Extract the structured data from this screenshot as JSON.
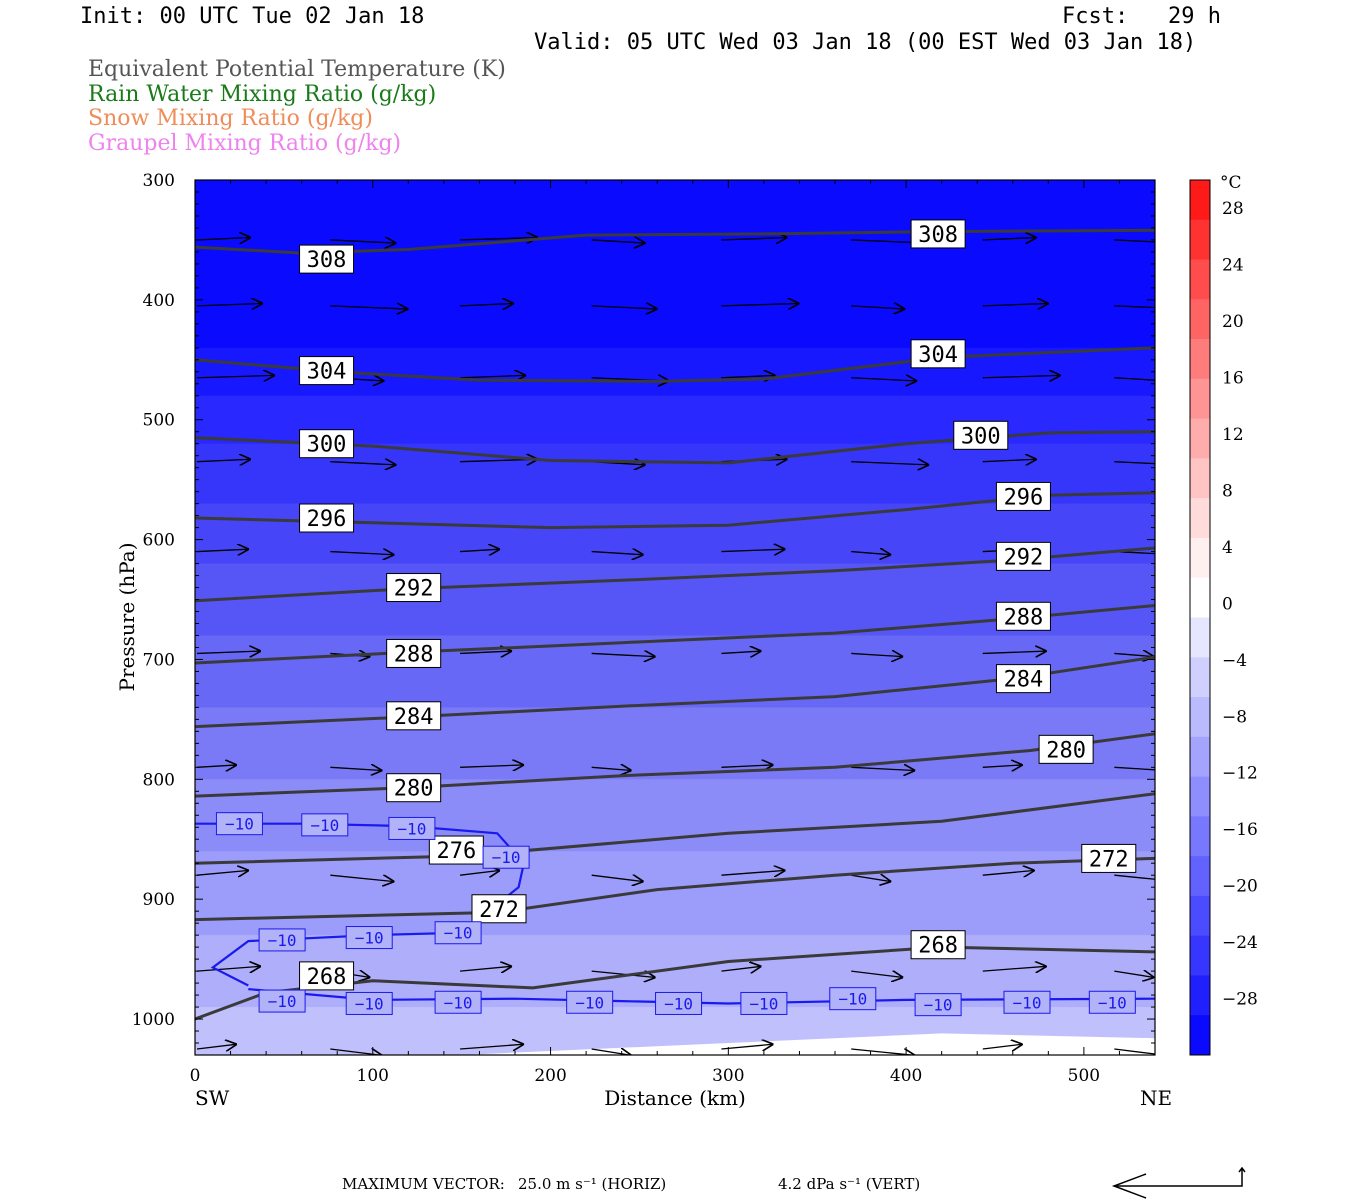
{
  "header": {
    "init": "Init: 00 UTC Tue 02 Jan 18",
    "fcst": "Fcst:   29 h",
    "valid": "Valid: 05 UTC Wed 03 Jan 18 (00 EST Wed 03 Jan 18)"
  },
  "legend": [
    {
      "label": "Equivalent Potential Temperature (K)",
      "color": "#555555"
    },
    {
      "label": "Rain Water Mixing Ratio (g/kg)",
      "color": "#1a7a1a"
    },
    {
      "label": "Snow Mixing Ratio (g/kg)",
      "color": "#f08c5a"
    },
    {
      "label": "Graupel Mixing Ratio (g/kg)",
      "color": "#ee82ee"
    }
  ],
  "footer": {
    "vector_label": "MAXIMUM VECTOR:",
    "horiz": "25.0 m s⁻¹ (HORIZ)",
    "vert": "4.2 dPa s⁻¹ (VERT)"
  },
  "chart_data": {
    "type": "heatmap",
    "xlabel": "Distance (km)",
    "ylabel": "Pressure (hPa)",
    "xlim": [
      0,
      540
    ],
    "ylim": [
      1030,
      300
    ],
    "x_ticks": [
      "0",
      "100",
      "200",
      "300",
      "400",
      "500"
    ],
    "x_tick_values": [
      0,
      100,
      200,
      300,
      400,
      500
    ],
    "y_ticks": [
      "300",
      "400",
      "500",
      "600",
      "700",
      "800",
      "900",
      "1000"
    ],
    "y_tick_values": [
      300,
      400,
      500,
      600,
      700,
      800,
      900,
      1000
    ],
    "x_end_labels": {
      "left": "SW",
      "right": "NE"
    },
    "colorbar": {
      "unit": "°C",
      "labels": [
        "28",
        "24",
        "20",
        "16",
        "12",
        "8",
        "4",
        "0",
        "−4",
        "−8",
        "−12",
        "−16",
        "−20",
        "−24",
        "−28"
      ],
      "values": [
        28,
        24,
        20,
        16,
        12,
        8,
        4,
        0,
        -4,
        -8,
        -12,
        -16,
        -20,
        -24,
        -28
      ],
      "colors": [
        "#ff1a1a",
        "#ff3232",
        "#ff4c4c",
        "#ff6464",
        "#ff7c7c",
        "#ff9494",
        "#ffacac",
        "#ffc4c4",
        "#ffdcdc",
        "#fff0f0",
        "#ffffff",
        "#e6e6ff",
        "#d0d0ff",
        "#babaff",
        "#a4a4ff",
        "#8e8eff",
        "#7878ff",
        "#6262ff",
        "#4c4cff",
        "#3636ff",
        "#2020ff",
        "#0a0aff"
      ]
    },
    "temperature_bands": [
      {
        "top": 300,
        "color": "#0a0aff"
      },
      {
        "top": 440,
        "color": "#1818ff"
      },
      {
        "top": 480,
        "color": "#2828ff"
      },
      {
        "top": 520,
        "color": "#3636fa"
      },
      {
        "top": 570,
        "color": "#4646f8"
      },
      {
        "top": 620,
        "color": "#5656f6"
      },
      {
        "top": 680,
        "color": "#6868f6"
      },
      {
        "top": 740,
        "color": "#7a7af6"
      },
      {
        "top": 800,
        "color": "#8c8cf8"
      },
      {
        "top": 860,
        "color": "#9c9cfa"
      },
      {
        "top": 930,
        "color": "#aeaefb"
      },
      {
        "top": 990,
        "color": "#c0c0fd"
      }
    ],
    "theta_e_contours": [
      {
        "value": "308",
        "points": [
          [
            0,
            356
          ],
          [
            60,
            361
          ],
          [
            120,
            358
          ],
          [
            220,
            346
          ],
          [
            320,
            345
          ],
          [
            420,
            343
          ],
          [
            540,
            342
          ]
        ],
        "labels": [
          [
            74,
            366
          ],
          [
            418,
            345
          ]
        ]
      },
      {
        "value": "304",
        "points": [
          [
            0,
            450
          ],
          [
            80,
            460
          ],
          [
            160,
            467
          ],
          [
            260,
            468
          ],
          [
            320,
            466
          ],
          [
            420,
            448
          ],
          [
            540,
            440
          ]
        ],
        "labels": [
          [
            74,
            459
          ],
          [
            418,
            445
          ]
        ]
      },
      {
        "value": "300",
        "points": [
          [
            0,
            515
          ],
          [
            100,
            522
          ],
          [
            200,
            534
          ],
          [
            300,
            536
          ],
          [
            400,
            520
          ],
          [
            480,
            511
          ],
          [
            540,
            510
          ]
        ],
        "labels": [
          [
            74,
            520
          ],
          [
            442,
            513
          ]
        ]
      },
      {
        "value": "296",
        "points": [
          [
            0,
            582
          ],
          [
            100,
            586
          ],
          [
            200,
            590
          ],
          [
            300,
            588
          ],
          [
            400,
            575
          ],
          [
            480,
            563
          ],
          [
            540,
            561
          ]
        ],
        "labels": [
          [
            74,
            582
          ],
          [
            466,
            564
          ]
        ]
      },
      {
        "value": "292",
        "points": [
          [
            0,
            651
          ],
          [
            120,
            641
          ],
          [
            240,
            634
          ],
          [
            360,
            626
          ],
          [
            460,
            617
          ],
          [
            540,
            607
          ]
        ],
        "labels": [
          [
            123,
            640
          ],
          [
            466,
            614
          ]
        ]
      },
      {
        "value": "288",
        "points": [
          [
            0,
            703
          ],
          [
            120,
            694
          ],
          [
            240,
            686
          ],
          [
            360,
            678
          ],
          [
            460,
            666
          ],
          [
            540,
            655
          ]
        ],
        "labels": [
          [
            123,
            695
          ],
          [
            466,
            664
          ]
        ]
      },
      {
        "value": "284",
        "points": [
          [
            0,
            756
          ],
          [
            120,
            748
          ],
          [
            240,
            739
          ],
          [
            360,
            731
          ],
          [
            460,
            716
          ],
          [
            540,
            698
          ]
        ],
        "labels": [
          [
            123,
            747
          ],
          [
            466,
            716
          ]
        ]
      },
      {
        "value": "280",
        "points": [
          [
            0,
            814
          ],
          [
            120,
            807
          ],
          [
            240,
            797
          ],
          [
            360,
            790
          ],
          [
            470,
            776
          ],
          [
            540,
            762
          ]
        ],
        "labels": [
          [
            123,
            807
          ],
          [
            490,
            775
          ]
        ]
      },
      {
        "value": "276",
        "points": [
          [
            0,
            870
          ],
          [
            150,
            864
          ],
          [
            300,
            845
          ],
          [
            420,
            835
          ],
          [
            540,
            812
          ]
        ],
        "labels": [
          [
            147,
            859
          ]
        ]
      },
      {
        "value": "272",
        "points": [
          [
            0,
            917
          ],
          [
            170,
            911
          ],
          [
            260,
            892
          ],
          [
            360,
            880
          ],
          [
            460,
            870
          ],
          [
            540,
            866
          ]
        ],
        "labels": [
          [
            171,
            908
          ],
          [
            514,
            866
          ]
        ]
      },
      {
        "value": "268",
        "points": [
          [
            0,
            1000
          ],
          [
            40,
            978
          ],
          [
            100,
            968
          ],
          [
            190,
            974
          ],
          [
            300,
            952
          ],
          [
            420,
            940
          ],
          [
            540,
            944
          ]
        ],
        "labels": [
          [
            74,
            964
          ],
          [
            418,
            938
          ]
        ]
      }
    ],
    "isotherm_minus10": {
      "value": "−10",
      "upper": [
        [
          0,
          837
        ],
        [
          60,
          837
        ],
        [
          120,
          839
        ],
        [
          170,
          845
        ],
        [
          185,
          870
        ],
        [
          182,
          890
        ],
        [
          150,
          928
        ],
        [
          100,
          930
        ],
        [
          30,
          935
        ],
        [
          10,
          957
        ],
        [
          30,
          972
        ]
      ],
      "lower": [
        [
          30,
          975
        ],
        [
          100,
          984
        ],
        [
          180,
          983
        ],
        [
          240,
          985
        ],
        [
          300,
          987
        ],
        [
          400,
          984
        ],
        [
          540,
          983
        ]
      ],
      "labels": [
        [
          25,
          837
        ],
        [
          73,
          838
        ],
        [
          122,
          841
        ],
        [
          175,
          865
        ],
        [
          49,
          934
        ],
        [
          98,
          932
        ],
        [
          148,
          928
        ],
        [
          49,
          985
        ],
        [
          98,
          987
        ],
        [
          148,
          986
        ],
        [
          222,
          986
        ],
        [
          272,
          987
        ],
        [
          320,
          987
        ],
        [
          370,
          983
        ],
        [
          418,
          988
        ],
        [
          468,
          986
        ],
        [
          516,
          986
        ]
      ]
    },
    "wind_rows": [
      350,
      405,
      465,
      535,
      610,
      695,
      790,
      880,
      960,
      1025
    ],
    "wind_cols": [
      0,
      75,
      148,
      222,
      295,
      368,
      442,
      516
    ]
  }
}
